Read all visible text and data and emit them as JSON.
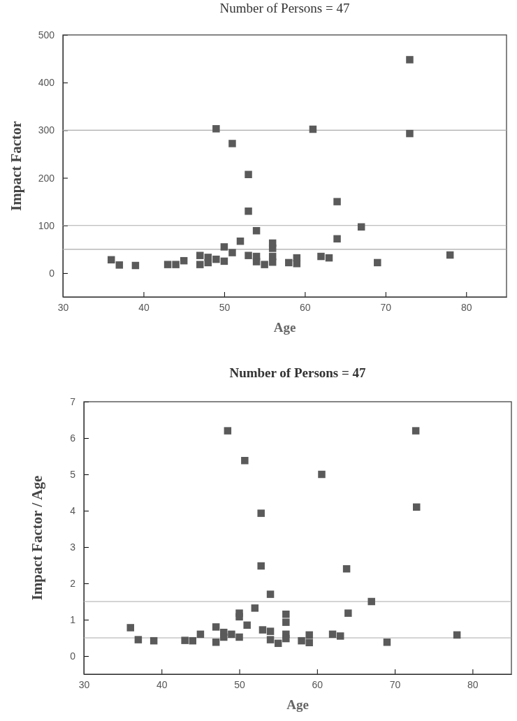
{
  "chart_data": [
    {
      "type": "scatter",
      "title": "Number of Persons = 47",
      "xlabel": "Age",
      "ylabel": "Impact Factor",
      "xlim": [
        30,
        85
      ],
      "xticks": [
        30,
        40,
        50,
        60,
        70,
        80
      ],
      "ylim": [
        -50,
        500
      ],
      "yticks": [
        0,
        100,
        200,
        300,
        400,
        500
      ],
      "marker": "square",
      "grid": false,
      "ref_lines": [
        {
          "axis": "y",
          "value": 50
        },
        {
          "axis": "y",
          "value": 100
        },
        {
          "axis": "y",
          "value": 300
        }
      ],
      "series": [
        {
          "color": "#5a5a5a",
          "x": [
            36,
            37,
            39,
            43,
            44,
            45,
            47,
            47,
            48,
            48,
            49,
            49,
            50,
            50,
            51,
            51,
            52,
            53,
            53,
            53,
            54,
            54,
            54,
            55,
            56,
            56,
            56,
            56,
            58,
            59,
            59,
            61,
            62,
            63,
            64,
            64,
            67,
            69,
            73,
            73,
            78
          ],
          "values": [
            28,
            17,
            16,
            18,
            18,
            26,
            37,
            18,
            33,
            22,
            29,
            303,
            55,
            25,
            43,
            272,
            67,
            37,
            130,
            207,
            89,
            35,
            24,
            18,
            63,
            52,
            35,
            23,
            22,
            32,
            20,
            302,
            35,
            32,
            150,
            72,
            97,
            22,
            448,
            293,
            38
          ]
        }
      ]
    },
    {
      "type": "scatter",
      "title": "Number of Persons = 47",
      "xlabel": "Age",
      "ylabel": "Impact Factor / Age",
      "xlim": [
        30,
        85
      ],
      "xticks": [
        30,
        40,
        50,
        60,
        70,
        80
      ],
      "ylim": [
        -0.5,
        7
      ],
      "yticks": [
        0,
        1,
        2,
        3,
        4,
        5,
        6,
        7
      ],
      "marker": "square",
      "grid": false,
      "ref_lines": [
        {
          "axis": "y",
          "value": 0.5
        },
        {
          "axis": "y",
          "value": 1.5
        }
      ],
      "series": [
        {
          "color": "#5a5a5a",
          "x": [
            36,
            37,
            39,
            43,
            44,
            45,
            47,
            47,
            48,
            48,
            49,
            48.5,
            50,
            50,
            50,
            51,
            50.7,
            52,
            53,
            52.8,
            52.8,
            54,
            54,
            54,
            55,
            56,
            56,
            56,
            56,
            58,
            59,
            59,
            60.6,
            62,
            63,
            63.8,
            64,
            67,
            69,
            72.7,
            72.8,
            78
          ],
          "values": [
            0.78,
            0.45,
            0.42,
            0.43,
            0.42,
            0.6,
            0.8,
            0.38,
            0.65,
            0.52,
            0.6,
            6.2,
            1.18,
            1.08,
            0.52,
            0.85,
            5.38,
            1.32,
            0.72,
            3.93,
            2.48,
            1.7,
            0.68,
            0.45,
            0.35,
            1.15,
            0.93,
            0.6,
            0.48,
            0.42,
            0.58,
            0.37,
            5.0,
            0.6,
            0.55,
            2.4,
            1.18,
            1.5,
            0.38,
            6.2,
            4.1,
            0.58
          ]
        }
      ]
    }
  ]
}
